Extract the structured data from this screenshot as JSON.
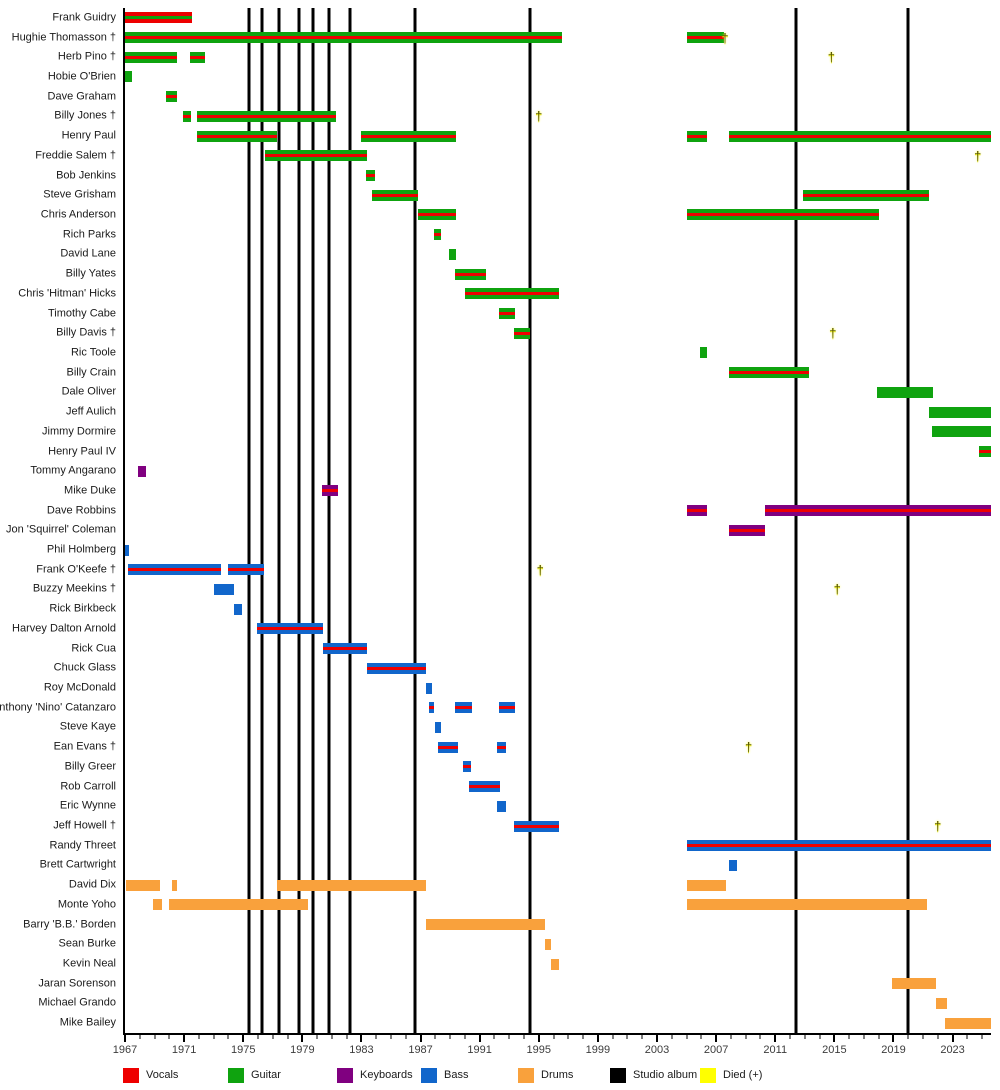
{
  "legend": [
    {
      "label": "Vocals",
      "color_key": "vocals"
    },
    {
      "label": "Guitar",
      "color_key": "guitar"
    },
    {
      "label": "Keyboards",
      "color_key": "keyboards"
    },
    {
      "label": "Bass",
      "color_key": "bass"
    },
    {
      "label": "Drums",
      "color_key": "drums"
    },
    {
      "label": "Studio album",
      "color_key": "album"
    },
    {
      "label": "Died (+)",
      "color_key": "died"
    }
  ],
  "colors": {
    "vocals": "#ee0000",
    "guitar": "#0fa30f",
    "keyboards": "#800080",
    "bass": "#1166cb",
    "drums": "#f9a13c",
    "album": "#000000",
    "died": "#ffff00"
  },
  "chart_data": {
    "type": "timeline",
    "x_axis": {
      "start": 1967,
      "end": 2025.6,
      "major_tick_years": [
        1967,
        1971,
        1975,
        1979,
        1983,
        1987,
        1991,
        1995,
        1999,
        2003,
        2007,
        2011,
        2015,
        2019,
        2023
      ],
      "minor_tick_step": 1
    },
    "album_line_years": [
      1975.4,
      1976.3,
      1977.4,
      1978.8,
      1979.7,
      1980.8,
      1982.2,
      1986.6,
      1994.4,
      2012.4,
      2020.0
    ],
    "members": [
      {
        "name": "Frank Guidry",
        "segments": [
          {
            "s": 1967,
            "e": 1971.5,
            "role": "vocals",
            "stripe": "guitar"
          }
        ]
      },
      {
        "name": "Hughie Thomasson †",
        "died": 2007.6,
        "segments": [
          {
            "s": 1967,
            "e": 1996.6,
            "role": "guitar",
            "stripe": "vocals"
          },
          {
            "s": 2005,
            "e": 2007.5,
            "role": "guitar",
            "stripe": "vocals"
          }
        ]
      },
      {
        "name": "Herb Pino †",
        "died": 2014.8,
        "segments": [
          {
            "s": 1967,
            "e": 1970.5,
            "role": "guitar",
            "stripe": "vocals"
          },
          {
            "s": 1971.4,
            "e": 1972.4,
            "role": "guitar",
            "stripe": "vocals"
          }
        ]
      },
      {
        "name": "Hobie O'Brien",
        "segments": [
          {
            "s": 1967,
            "e": 1967.5,
            "role": "guitar"
          }
        ]
      },
      {
        "name": "Dave Graham",
        "segments": [
          {
            "s": 1969.8,
            "e": 1970.5,
            "role": "guitar",
            "stripe": "vocals"
          }
        ]
      },
      {
        "name": "Billy Jones †",
        "died": 1995.0,
        "segments": [
          {
            "s": 1970.9,
            "e": 1971.5,
            "role": "guitar",
            "stripe": "vocals"
          },
          {
            "s": 1971.9,
            "e": 1981.3,
            "role": "guitar",
            "stripe": "vocals"
          }
        ]
      },
      {
        "name": "Henry Paul",
        "segments": [
          {
            "s": 1971.9,
            "e": 1977.3,
            "role": "guitar",
            "stripe": "vocals"
          },
          {
            "s": 1983,
            "e": 1989.4,
            "role": "guitar",
            "stripe": "vocals"
          },
          {
            "s": 2005,
            "e": 2006.4,
            "role": "guitar",
            "stripe": "vocals"
          },
          {
            "s": 2007.9,
            "e": 2025.6,
            "role": "guitar",
            "stripe": "vocals"
          }
        ]
      },
      {
        "name": "Freddie Salem †",
        "died": 2024.7,
        "segments": [
          {
            "s": 1976.5,
            "e": 1983.4,
            "role": "guitar",
            "stripe": "vocals"
          }
        ]
      },
      {
        "name": "Bob Jenkins",
        "segments": [
          {
            "s": 1983.3,
            "e": 1983.9,
            "role": "guitar",
            "stripe": "vocals"
          }
        ]
      },
      {
        "name": "Steve Grisham",
        "segments": [
          {
            "s": 1983.7,
            "e": 1986.8,
            "role": "guitar",
            "stripe": "vocals"
          },
          {
            "s": 2012.9,
            "e": 2021.4,
            "role": "guitar",
            "stripe": "vocals"
          }
        ]
      },
      {
        "name": "Chris Anderson",
        "segments": [
          {
            "s": 1986.8,
            "e": 1989.4,
            "role": "guitar",
            "stripe": "vocals"
          },
          {
            "s": 2005,
            "e": 2018,
            "role": "guitar",
            "stripe": "vocals"
          }
        ]
      },
      {
        "name": "Rich Parks",
        "segments": [
          {
            "s": 1987.9,
            "e": 1988.4,
            "role": "guitar",
            "stripe": "vocals"
          }
        ]
      },
      {
        "name": "David Lane",
        "segments": [
          {
            "s": 1988.9,
            "e": 1989.4,
            "role": "guitar"
          }
        ]
      },
      {
        "name": "Billy Yates",
        "segments": [
          {
            "s": 1989.3,
            "e": 1991.4,
            "role": "guitar",
            "stripe": "vocals"
          }
        ]
      },
      {
        "name": "Chris 'Hitman' Hicks",
        "segments": [
          {
            "s": 1990,
            "e": 1996.4,
            "role": "guitar",
            "stripe": "vocals"
          }
        ]
      },
      {
        "name": "Timothy Cabe",
        "segments": [
          {
            "s": 1992.3,
            "e": 1993.4,
            "role": "guitar",
            "stripe": "vocals"
          }
        ]
      },
      {
        "name": "Billy Davis †",
        "died": 2014.9,
        "segments": [
          {
            "s": 1993.3,
            "e": 1994.4,
            "role": "guitar",
            "stripe": "vocals"
          }
        ]
      },
      {
        "name": "Ric Toole",
        "segments": [
          {
            "s": 2005.9,
            "e": 2006.4,
            "role": "guitar"
          }
        ]
      },
      {
        "name": "Billy Crain",
        "segments": [
          {
            "s": 2007.9,
            "e": 2013.3,
            "role": "guitar",
            "stripe": "vocals"
          }
        ]
      },
      {
        "name": "Dale Oliver",
        "segments": [
          {
            "s": 2017.9,
            "e": 2021.7,
            "role": "guitar"
          }
        ]
      },
      {
        "name": "Jeff Aulich",
        "segments": [
          {
            "s": 2021.4,
            "e": 2025.6,
            "role": "guitar"
          }
        ]
      },
      {
        "name": "Jimmy Dormire",
        "segments": [
          {
            "s": 2021.6,
            "e": 2025.6,
            "role": "guitar"
          }
        ]
      },
      {
        "name": "Henry Paul IV",
        "segments": [
          {
            "s": 2024.8,
            "e": 2025.6,
            "role": "guitar",
            "stripe": "vocals"
          }
        ]
      },
      {
        "name": "Tommy Angarano",
        "segments": [
          {
            "s": 1967.9,
            "e": 1968.4,
            "role": "keyboards"
          }
        ]
      },
      {
        "name": "Mike Duke",
        "segments": [
          {
            "s": 1980.3,
            "e": 1981.4,
            "role": "keyboards",
            "stripe": "vocals"
          }
        ]
      },
      {
        "name": "Dave Robbins",
        "segments": [
          {
            "s": 2005,
            "e": 2006.4,
            "role": "keyboards",
            "stripe": "vocals"
          },
          {
            "s": 2010.3,
            "e": 2025.6,
            "role": "keyboards",
            "stripe": "vocals"
          }
        ]
      },
      {
        "name": "Jon 'Squirrel' Coleman",
        "segments": [
          {
            "s": 2007.9,
            "e": 2010.3,
            "role": "keyboards",
            "stripe": "vocals"
          }
        ]
      },
      {
        "name": "Phil Holmberg",
        "segments": [
          {
            "s": 1967,
            "e": 1967.3,
            "role": "bass"
          }
        ]
      },
      {
        "name": "Frank O'Keefe †",
        "died": 1995.1,
        "segments": [
          {
            "s": 1967.2,
            "e": 1973.5,
            "role": "bass",
            "stripe": "vocals"
          },
          {
            "s": 1974,
            "e": 1976.4,
            "role": "bass",
            "stripe": "vocals"
          }
        ]
      },
      {
        "name": "Buzzy Meekins †",
        "died": 2015.2,
        "segments": [
          {
            "s": 1973,
            "e": 1974.4,
            "role": "bass"
          }
        ]
      },
      {
        "name": "Rick Birkbeck",
        "segments": [
          {
            "s": 1974.4,
            "e": 1974.9,
            "role": "bass"
          }
        ]
      },
      {
        "name": "Harvey Dalton Arnold",
        "segments": [
          {
            "s": 1975.9,
            "e": 1980.4,
            "role": "bass",
            "stripe": "vocals"
          }
        ]
      },
      {
        "name": "Rick Cua",
        "segments": [
          {
            "s": 1980.4,
            "e": 1983.4,
            "role": "bass",
            "stripe": "vocals"
          }
        ]
      },
      {
        "name": "Chuck Glass",
        "segments": [
          {
            "s": 1983.4,
            "e": 1987.4,
            "role": "bass",
            "stripe": "vocals"
          }
        ]
      },
      {
        "name": "Roy McDonald",
        "segments": [
          {
            "s": 1987.4,
            "e": 1987.8,
            "role": "bass"
          }
        ]
      },
      {
        "name": "Anthony 'Nino' Catanzaro",
        "segments": [
          {
            "s": 1987.6,
            "e": 1987.9,
            "role": "bass",
            "stripe": "vocals"
          },
          {
            "s": 1989.3,
            "e": 1990.5,
            "role": "bass",
            "stripe": "vocals"
          },
          {
            "s": 1992.3,
            "e": 1993.4,
            "role": "bass",
            "stripe": "vocals"
          }
        ]
      },
      {
        "name": "Steve Kaye",
        "segments": [
          {
            "s": 1988,
            "e": 1988.4,
            "role": "bass"
          }
        ]
      },
      {
        "name": "Ean Evans †",
        "died": 2009.2,
        "segments": [
          {
            "s": 1988.2,
            "e": 1989.5,
            "role": "bass",
            "stripe": "vocals"
          },
          {
            "s": 1992.2,
            "e": 1992.8,
            "role": "bass",
            "stripe": "vocals"
          }
        ]
      },
      {
        "name": "Billy Greer",
        "segments": [
          {
            "s": 1989.9,
            "e": 1990.4,
            "role": "bass",
            "stripe": "vocals"
          }
        ]
      },
      {
        "name": "Rob Carroll",
        "segments": [
          {
            "s": 1990.3,
            "e": 1992.4,
            "role": "bass",
            "stripe": "vocals"
          }
        ]
      },
      {
        "name": "Eric Wynne",
        "segments": [
          {
            "s": 1992.2,
            "e": 1992.8,
            "role": "bass"
          }
        ]
      },
      {
        "name": "Jeff Howell †",
        "died": 2022.0,
        "segments": [
          {
            "s": 1993.3,
            "e": 1996.4,
            "role": "bass",
            "stripe": "vocals"
          }
        ]
      },
      {
        "name": "Randy Threet",
        "segments": [
          {
            "s": 2005,
            "e": 2025.6,
            "role": "bass",
            "stripe": "vocals"
          }
        ]
      },
      {
        "name": "Brett Cartwright",
        "segments": [
          {
            "s": 2007.9,
            "e": 2008.4,
            "role": "bass"
          }
        ]
      },
      {
        "name": "David Dix",
        "segments": [
          {
            "s": 1967.1,
            "e": 1969.4,
            "role": "drums"
          },
          {
            "s": 1970.2,
            "e": 1970.5,
            "role": "drums"
          },
          {
            "s": 1977.3,
            "e": 1987.4,
            "role": "drums"
          },
          {
            "s": 2005,
            "e": 2007.7,
            "role": "drums"
          }
        ]
      },
      {
        "name": "Monte Yoho",
        "segments": [
          {
            "s": 1968.9,
            "e": 1969.5,
            "role": "drums"
          },
          {
            "s": 1970,
            "e": 1979.4,
            "role": "drums"
          },
          {
            "s": 2005,
            "e": 2021.3,
            "role": "drums"
          }
        ]
      },
      {
        "name": "Barry 'B.B.' Borden",
        "segments": [
          {
            "s": 1987.4,
            "e": 1995.4,
            "role": "drums"
          }
        ]
      },
      {
        "name": "Sean Burke",
        "segments": [
          {
            "s": 1995.4,
            "e": 1995.8,
            "role": "drums"
          }
        ]
      },
      {
        "name": "Kevin Neal",
        "segments": [
          {
            "s": 1995.8,
            "e": 1996.4,
            "role": "drums"
          }
        ]
      },
      {
        "name": "Jaran Sorenson",
        "segments": [
          {
            "s": 2018.9,
            "e": 2021.9,
            "role": "drums"
          }
        ]
      },
      {
        "name": "Michael Grando",
        "segments": [
          {
            "s": 2021.9,
            "e": 2022.6,
            "role": "drums"
          }
        ]
      },
      {
        "name": "Mike Bailey",
        "segments": [
          {
            "s": 2022.5,
            "e": 2025.6,
            "role": "drums"
          }
        ]
      }
    ]
  },
  "layout": {
    "legend_item_lefts": [
      123,
      228,
      337,
      421,
      518,
      610,
      700
    ]
  }
}
